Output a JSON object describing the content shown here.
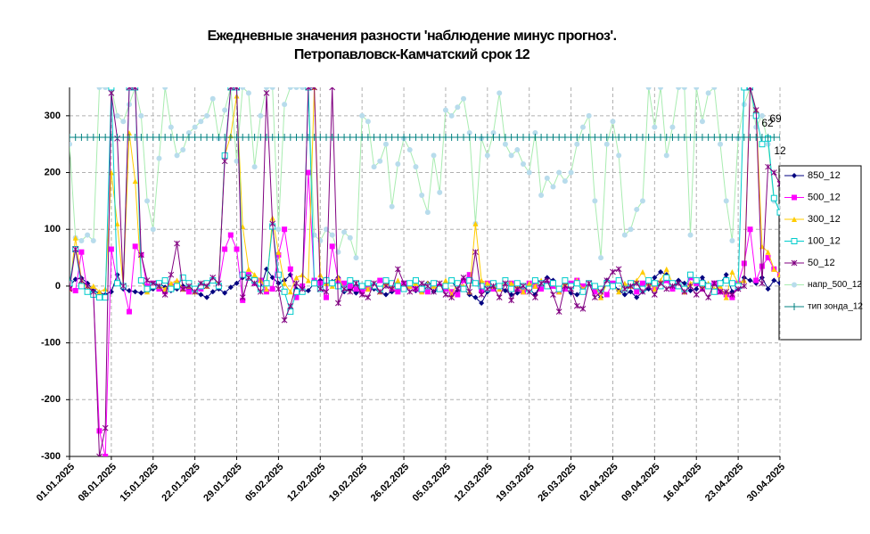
{
  "chart_data": {
    "type": "line",
    "title": [
      "Ежедневные значения разности 'наблюдение минус прогноз'.",
      "Петропавловск-Камчатский     срок 12"
    ],
    "categories": [
      "01.01.2025",
      null,
      null,
      null,
      null,
      null,
      null,
      "08.01.2025",
      null,
      null,
      null,
      null,
      null,
      null,
      "15.01.2025",
      null,
      null,
      null,
      null,
      null,
      null,
      "22.01.2025",
      null,
      null,
      null,
      null,
      null,
      null,
      "29.01.2025",
      null,
      null,
      null,
      null,
      null,
      null,
      "05.02.2025",
      null,
      null,
      null,
      null,
      null,
      null,
      "12.02.2025",
      null,
      null,
      null,
      null,
      null,
      null,
      "19.02.2025",
      null,
      null,
      null,
      null,
      null,
      null,
      "26.02.2025",
      null,
      null,
      null,
      null,
      null,
      null,
      "05.03.2025",
      null,
      null,
      null,
      null,
      null,
      null,
      "12.03.2025",
      null,
      null,
      null,
      null,
      null,
      null,
      "19.03.2025",
      null,
      null,
      null,
      null,
      null,
      null,
      "26.03.2025",
      null,
      null,
      null,
      null,
      null,
      null,
      "02.04.2025",
      null,
      null,
      null,
      null,
      null,
      null,
      "09.04.2025",
      null,
      null,
      null,
      null,
      null,
      null,
      "16.04.2025",
      null,
      null,
      null,
      null,
      null,
      null,
      "23.04.2025",
      null,
      null,
      null,
      null,
      null,
      null,
      "30.04.2025"
    ],
    "ylim": [
      -300,
      350
    ],
    "yticks": [
      -300,
      -200,
      -100,
      0,
      100,
      200,
      300
    ],
    "grid": true,
    "legend": "right",
    "annotations": [
      "69",
      "62",
      "12"
    ],
    "series": [
      {
        "name": "850_12",
        "color": "#000080",
        "marker": "diamond",
        "values": [
          0,
          12,
          14,
          5,
          -8,
          -12,
          -15,
          -10,
          20,
          -5,
          -8,
          -10,
          -12,
          -10,
          -5,
          5,
          -2,
          -8,
          -5,
          0,
          -5,
          -10,
          -15,
          -20,
          -10,
          -5,
          -12,
          -2,
          5,
          15,
          20,
          10,
          -5,
          30,
          15,
          5,
          10,
          20,
          -5,
          -10,
          -8,
          5,
          10,
          12,
          8,
          15,
          -10,
          -5,
          -12,
          -8,
          0,
          -5,
          -10,
          -15,
          -10,
          -8,
          -5,
          5,
          -8,
          -2,
          5,
          -10,
          -5,
          0,
          10,
          -8,
          -5,
          -15,
          -20,
          -30,
          -10,
          -5,
          0,
          -8,
          -15,
          -12,
          -10,
          -5,
          -15,
          5,
          15,
          10,
          -10,
          -5,
          -12,
          -15,
          -8,
          5,
          -10,
          -20,
          10,
          5,
          -8,
          -15,
          -10,
          -20,
          -10,
          -5,
          15,
          25,
          20,
          -5,
          10,
          5,
          -8,
          -5,
          15,
          0,
          -10,
          5,
          20,
          -10,
          -5,
          15,
          10,
          5,
          15,
          -5,
          10,
          5
        ]
      },
      {
        "name": "500_12",
        "color": "#ff00ff",
        "marker": "square",
        "values": [
          -5,
          -8,
          60,
          -10,
          -15,
          -255,
          -300,
          65,
          5,
          0,
          -45,
          70,
          55,
          0,
          5,
          -5,
          -10,
          0,
          5,
          -5,
          -10,
          -8,
          -5,
          5,
          10,
          0,
          65,
          90,
          65,
          -25,
          20,
          5,
          10,
          -10,
          -5,
          55,
          100,
          30,
          -20,
          0,
          200,
          10,
          5,
          -20,
          70,
          10,
          5,
          0,
          -5,
          -10,
          -5,
          0,
          10,
          5,
          -5,
          -10,
          5,
          0,
          -5,
          -8,
          -10,
          5,
          0,
          -5,
          -10,
          -15,
          10,
          20,
          5,
          -8,
          5,
          -5,
          0,
          10,
          5,
          -5,
          -10,
          5,
          0,
          -5,
          5,
          0,
          -10,
          -5,
          5,
          10,
          0,
          5,
          -10,
          -5,
          -15,
          5,
          10,
          -5,
          0,
          -10,
          5,
          10,
          -5,
          0,
          10,
          -5,
          0,
          -10,
          15,
          5,
          -5,
          0,
          5,
          -10,
          -15,
          -20,
          5,
          40,
          100,
          10,
          35,
          50,
          30,
          20
        ]
      },
      {
        "name": "300_12",
        "color": "#ffcc00",
        "marker": "triangle",
        "values": [
          -5,
          85,
          10,
          -5,
          0,
          -10,
          -5,
          200,
          110,
          0,
          270,
          185,
          10,
          -10,
          5,
          0,
          -5,
          5,
          10,
          -5,
          0,
          -10,
          5,
          0,
          10,
          5,
          230,
          265,
          335,
          105,
          30,
          20,
          10,
          -5,
          120,
          60,
          5,
          -10,
          15,
          20,
          10,
          350,
          20,
          5,
          0,
          15,
          -5,
          10,
          5,
          0,
          -5,
          5,
          -10,
          5,
          0,
          10,
          -5,
          0,
          5,
          -10,
          5,
          0,
          -5,
          10,
          -15,
          5,
          0,
          -10,
          110,
          10,
          5,
          0,
          -5,
          10,
          5,
          0,
          -10,
          5,
          0,
          10,
          0,
          5,
          -10,
          5,
          0,
          10,
          -5,
          5,
          0,
          -20,
          5,
          0,
          -10,
          5,
          0,
          10,
          25,
          5,
          -5,
          10,
          30,
          5,
          0,
          -10,
          5,
          10,
          0,
          5,
          -5,
          0,
          -20,
          25,
          5,
          10,
          350,
          310,
          70,
          60,
          30,
          20
        ]
      },
      {
        "name": "100_12",
        "color": "#00cccc",
        "marker": "open-square",
        "values": [
          5,
          65,
          0,
          -10,
          -15,
          -20,
          -20,
          350,
          5,
          0,
          350,
          350,
          10,
          -5,
          0,
          5,
          10,
          -5,
          0,
          15,
          5,
          -5,
          0,
          5,
          10,
          0,
          230,
          350,
          350,
          20,
          15,
          10,
          -5,
          5,
          105,
          20,
          -10,
          -45,
          -10,
          -10,
          350,
          5,
          -5,
          10,
          5,
          0,
          -5,
          10,
          5,
          0,
          5,
          0,
          -5,
          10,
          5,
          0,
          -5,
          5,
          10,
          -5,
          0,
          5,
          -5,
          0,
          10,
          5,
          -5,
          10,
          5,
          0,
          -5,
          5,
          0,
          10,
          -5,
          5,
          0,
          -5,
          10,
          5,
          0,
          5,
          -5,
          10,
          0,
          5,
          -10,
          5,
          0,
          -5,
          5,
          0,
          10,
          -5,
          5,
          0,
          -5,
          10,
          5,
          0,
          15,
          5,
          0,
          -5,
          20,
          10,
          5,
          0,
          -10,
          5,
          10,
          5,
          0,
          350,
          350,
          300,
          250,
          260,
          155,
          130
        ]
      },
      {
        "name": "50_12",
        "color": "#800080",
        "marker": "star",
        "values": [
          -5,
          65,
          10,
          0,
          -10,
          -300,
          -250,
          340,
          260,
          0,
          350,
          350,
          55,
          10,
          5,
          0,
          -15,
          20,
          75,
          -5,
          0,
          -10,
          5,
          0,
          15,
          5,
          220,
          350,
          350,
          -20,
          15,
          5,
          -10,
          340,
          110,
          -5,
          -60,
          -35,
          5,
          -5,
          350,
          350,
          -5,
          -10,
          350,
          -30,
          -5,
          -10,
          5,
          -15,
          -20,
          5,
          -10,
          0,
          -5,
          30,
          5,
          -10,
          -5,
          5,
          0,
          -10,
          5,
          -15,
          -20,
          -5,
          15,
          -10,
          60,
          -15,
          -5,
          0,
          -20,
          5,
          -25,
          -5,
          0,
          -10,
          -20,
          5,
          10,
          -15,
          -45,
          0,
          -5,
          -35,
          -40,
          5,
          -20,
          -10,
          10,
          25,
          30,
          -5,
          0,
          5,
          -10,
          0,
          -15,
          5,
          -5,
          0,
          5,
          -10,
          0,
          -15,
          -5,
          -20,
          5,
          -10,
          -10,
          -15,
          -5,
          0,
          350,
          310,
          5,
          210,
          200,
          180
        ]
      },
      {
        "name": "напр_500_12",
        "color": "#b8dcec",
        "marker": "circle",
        "values": [
          250,
          85,
          80,
          90,
          80,
          350,
          350,
          350,
          300,
          290,
          320,
          350,
          300,
          150,
          100,
          225,
          350,
          280,
          230,
          240,
          270,
          280,
          290,
          300,
          330,
          260,
          310,
          350,
          220,
          350,
          340,
          210,
          300,
          350,
          350,
          100,
          320,
          350,
          350,
          350,
          350,
          90,
          80,
          100,
          90,
          60,
          95,
          85,
          50,
          300,
          290,
          210,
          220,
          250,
          140,
          215,
          260,
          240,
          210,
          160,
          130,
          230,
          165,
          310,
          300,
          315,
          330,
          270,
          110,
          260,
          230,
          270,
          340,
          250,
          230,
          240,
          215,
          200,
          270,
          160,
          190,
          175,
          200,
          185,
          200,
          250,
          280,
          300,
          150,
          50,
          250,
          290,
          230,
          90,
          100,
          135,
          150,
          350,
          280,
          350,
          230,
          280,
          350,
          350,
          90,
          350,
          290,
          340,
          350,
          250,
          150,
          80,
          260,
          320,
          350,
          280,
          300,
          250,
          150,
          140
        ]
      },
      {
        "name": "тип зонда_12",
        "color": "#008080",
        "marker": "plus",
        "values": [
          262,
          262,
          262,
          262,
          262,
          262,
          262,
          262,
          262,
          262,
          262,
          262,
          262,
          262,
          262,
          262,
          262,
          262,
          262,
          262,
          262,
          262,
          262,
          262,
          262,
          262,
          262,
          262,
          262,
          262,
          262,
          262,
          262,
          262,
          262,
          262,
          262,
          262,
          262,
          262,
          262,
          262,
          262,
          262,
          262,
          262,
          262,
          262,
          262,
          262,
          262,
          262,
          262,
          262,
          262,
          262,
          262,
          262,
          262,
          262,
          262,
          262,
          262,
          262,
          262,
          262,
          262,
          262,
          262,
          262,
          262,
          262,
          262,
          262,
          262,
          262,
          262,
          262,
          262,
          262,
          262,
          262,
          262,
          262,
          262,
          262,
          262,
          262,
          262,
          262,
          262,
          262,
          262,
          262,
          262,
          262,
          262,
          262,
          262,
          262,
          262,
          262,
          262,
          262,
          262,
          262,
          262,
          262,
          262,
          262,
          262,
          262,
          262,
          262,
          262,
          262,
          262,
          262,
          262,
          262
        ]
      }
    ]
  }
}
